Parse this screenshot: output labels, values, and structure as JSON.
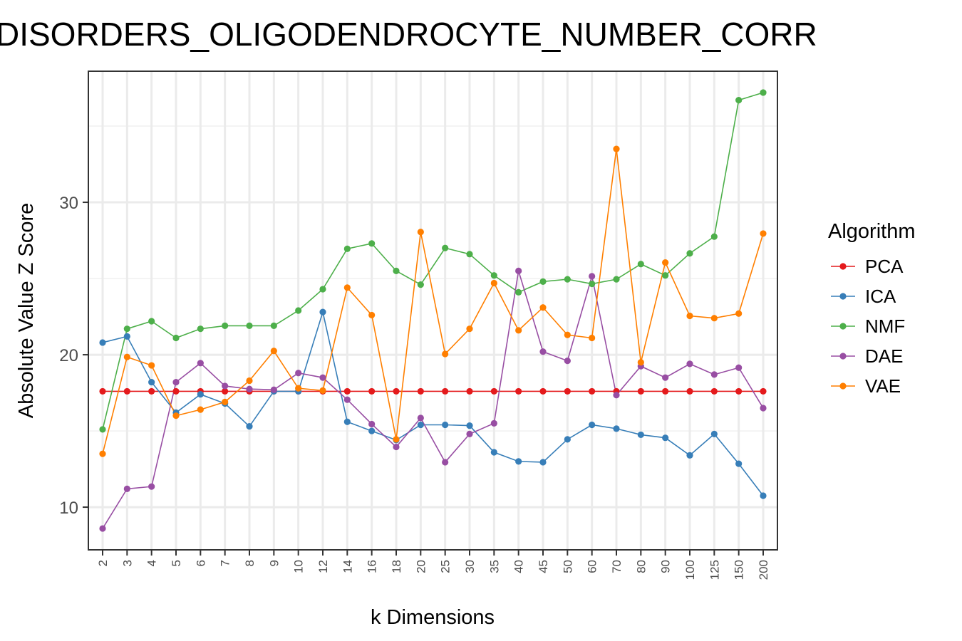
{
  "chart_data": {
    "type": "line",
    "title": "DISORDERS_OLIGODENDROCYTE_NUMBER_CORR",
    "xlabel": "k Dimensions",
    "ylabel": "Absolute Value Z Score",
    "categories": [
      "2",
      "3",
      "4",
      "5",
      "6",
      "7",
      "8",
      "9",
      "10",
      "12",
      "14",
      "16",
      "18",
      "20",
      "25",
      "30",
      "35",
      "40",
      "45",
      "50",
      "60",
      "70",
      "80",
      "90",
      "100",
      "125",
      "150",
      "200"
    ],
    "yticks": [
      10,
      20,
      30
    ],
    "ylim": [
      7.2,
      38.6
    ],
    "grid": true,
    "legend": {
      "title": "Algorithm",
      "position": "right"
    },
    "series": [
      {
        "name": "PCA",
        "color": "#E41A1C",
        "values": [
          17.6,
          17.6,
          17.6,
          17.6,
          17.6,
          17.6,
          17.6,
          17.6,
          17.6,
          17.6,
          17.6,
          17.6,
          17.6,
          17.6,
          17.6,
          17.6,
          17.6,
          17.6,
          17.6,
          17.6,
          17.6,
          17.6,
          17.6,
          17.6,
          17.6,
          17.6,
          17.6,
          17.6
        ]
      },
      {
        "name": "ICA",
        "color": "#377EB8",
        "values": [
          20.8,
          21.2,
          18.2,
          16.2,
          17.4,
          16.8,
          15.3,
          17.6,
          17.6,
          22.8,
          15.6,
          15.0,
          14.4,
          15.4,
          15.4,
          15.35,
          13.6,
          13.0,
          12.95,
          14.45,
          15.4,
          15.15,
          14.75,
          14.55,
          13.4,
          14.8,
          12.85,
          10.75
        ]
      },
      {
        "name": "NMF",
        "color": "#4DAF4A",
        "values": [
          15.1,
          21.7,
          22.2,
          21.1,
          21.7,
          21.9,
          21.9,
          21.9,
          22.9,
          24.3,
          26.95,
          27.3,
          25.5,
          24.6,
          27.0,
          26.6,
          25.2,
          24.1,
          24.8,
          24.95,
          24.65,
          24.95,
          25.95,
          25.2,
          26.65,
          27.75,
          36.7,
          37.2
        ]
      },
      {
        "name": "DAE",
        "color": "#984EA3",
        "values": [
          8.6,
          11.2,
          11.35,
          18.2,
          19.45,
          17.95,
          17.75,
          17.7,
          18.8,
          18.5,
          17.05,
          15.45,
          13.95,
          15.85,
          12.95,
          14.8,
          15.5,
          25.5,
          20.2,
          19.6,
          25.15,
          17.35,
          19.25,
          18.5,
          19.4,
          18.7,
          19.15,
          16.5
        ]
      },
      {
        "name": "VAE",
        "color": "#FF7F00",
        "values": [
          13.5,
          19.85,
          19.3,
          16.0,
          16.4,
          16.9,
          18.3,
          20.25,
          17.8,
          17.65,
          24.4,
          22.6,
          14.45,
          28.05,
          20.05,
          21.7,
          24.7,
          21.6,
          23.1,
          21.3,
          21.1,
          33.5,
          19.5,
          26.05,
          22.55,
          22.4,
          22.7,
          27.95
        ]
      }
    ]
  }
}
